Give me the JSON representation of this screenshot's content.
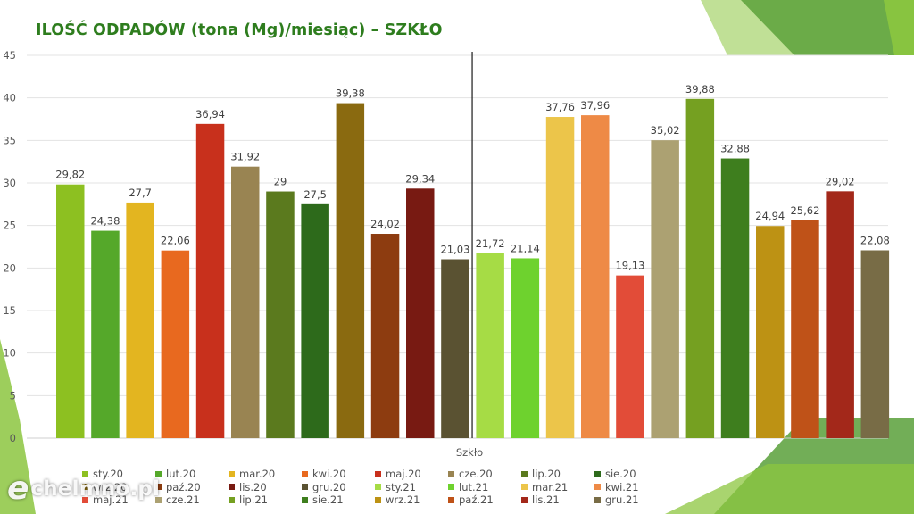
{
  "title": "ILOŚĆ ODPADÓW (tona (Mg)/miesiąc) – SZKŁO",
  "watermark": {
    "mark": "e",
    "text": "chelmno.pl"
  },
  "chart_data": {
    "type": "bar",
    "title": "ILOŚĆ ODPADÓW (tona (Mg)/miesiąc) – SZKŁO",
    "xlabel": "Szkło",
    "ylabel": "",
    "ylim": [
      0,
      45
    ],
    "yticks": [
      0,
      5,
      10,
      15,
      20,
      25,
      30,
      35,
      40,
      45
    ],
    "grid": true,
    "legend_position": "bottom",
    "divider_after_index": 11,
    "series": [
      {
        "name": "sty.20",
        "value": 29.82,
        "label": "29,82",
        "color": "#8dc021"
      },
      {
        "name": "lut.20",
        "value": 24.38,
        "label": "24,38",
        "color": "#55a82a"
      },
      {
        "name": "mar.20",
        "value": 27.7,
        "label": "27,7",
        "color": "#e3b520"
      },
      {
        "name": "kwi.20",
        "value": 22.06,
        "label": "22,06",
        "color": "#e8691f"
      },
      {
        "name": "maj.20",
        "value": 36.94,
        "label": "36,94",
        "color": "#c8301c"
      },
      {
        "name": "cze.20",
        "value": 31.92,
        "label": "31,92",
        "color": "#998452"
      },
      {
        "name": "lip.20",
        "value": 29,
        "label": "29",
        "color": "#5b7a1e"
      },
      {
        "name": "sie.20",
        "value": 27.5,
        "label": "27,5",
        "color": "#2d6a1b"
      },
      {
        "name": "wrz.20",
        "value": 39.38,
        "label": "39,38",
        "color": "#8a6a10"
      },
      {
        "name": "paź.20",
        "value": 24.02,
        "label": "24,02",
        "color": "#8d3c10"
      },
      {
        "name": "lis.20",
        "value": 29.34,
        "label": "29,34",
        "color": "#781a12"
      },
      {
        "name": "gru.20",
        "value": 21.03,
        "label": "21,03",
        "color": "#5a5232"
      },
      {
        "name": "sty.21",
        "value": 21.72,
        "label": "21,72",
        "color": "#a6dc45"
      },
      {
        "name": "lut.21",
        "value": 21.14,
        "label": "21,14",
        "color": "#6ed22e"
      },
      {
        "name": "mar.21",
        "value": 37.76,
        "label": "37,76",
        "color": "#ecc54a"
      },
      {
        "name": "kwi.21",
        "value": 37.96,
        "label": "37,96",
        "color": "#ee8a46"
      },
      {
        "name": "maj.21",
        "value": 19.13,
        "label": "19,13",
        "color": "#e24c38"
      },
      {
        "name": "cze.21",
        "value": 35.02,
        "label": "35,02",
        "color": "#aca172"
      },
      {
        "name": "lip.21",
        "value": 39.88,
        "label": "39,88",
        "color": "#75a021"
      },
      {
        "name": "sie.21",
        "value": 32.88,
        "label": "32,88",
        "color": "#3e7e1e"
      },
      {
        "name": "wrz.21",
        "value": 24.94,
        "label": "24,94",
        "color": "#bd9214"
      },
      {
        "name": "paź.21",
        "value": 25.62,
        "label": "25,62",
        "color": "#bf5218"
      },
      {
        "name": "lis.21",
        "value": 29.02,
        "label": "29,02",
        "color": "#a3281a"
      },
      {
        "name": "gru.21",
        "value": 22.08,
        "label": "22,08",
        "color": "#786c46"
      }
    ],
    "legend_order": [
      "sty.20",
      "lut.20",
      "mar.20",
      "kwi.20",
      "maj.20",
      "cze.20",
      "lip.20",
      "sie.20",
      "wrz.20",
      "paź.20",
      "lis.20",
      "gru.20",
      "sty.21",
      "lut.21",
      "mar.21",
      "kwi.21",
      "maj.21",
      "cze.21",
      "lip.21",
      "sie.21",
      "wrz.21",
      "paź.21",
      "lis.21",
      "gru.21"
    ],
    "decoration_colors": {
      "light_green": "#8cc63f",
      "dark_green": "#4f9a2d",
      "mid_green": "#6fb03a"
    }
  }
}
